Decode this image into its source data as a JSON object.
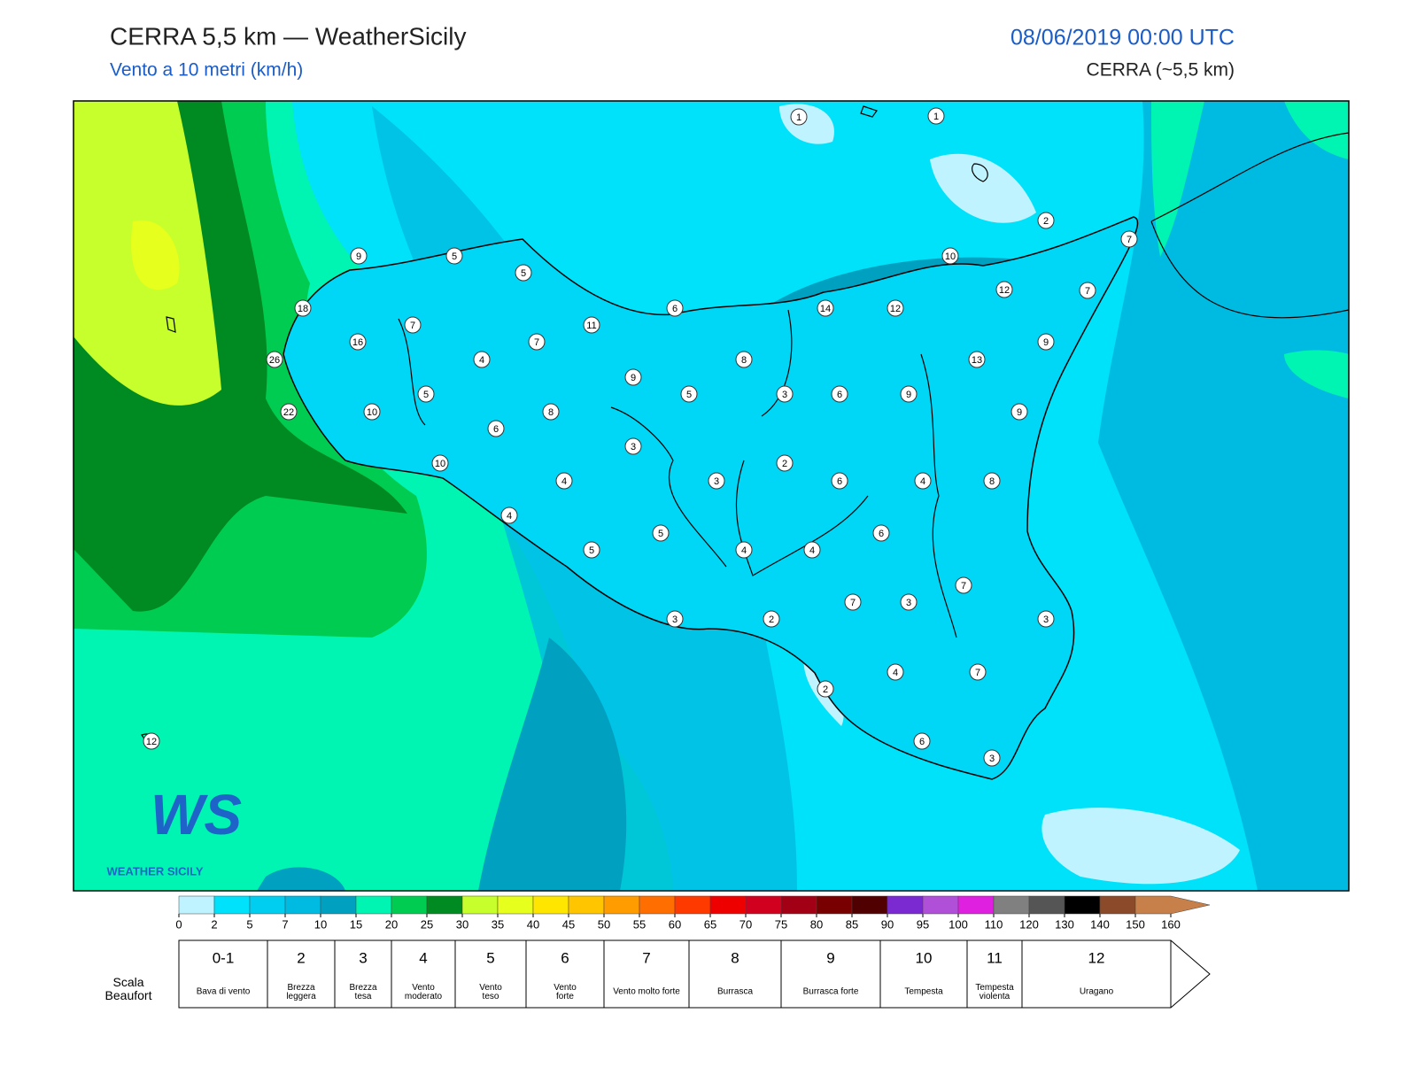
{
  "header": {
    "title": "CERRA 5,5 km — WeatherSicily",
    "subtitle": "Vento a 10 metri (km/h)",
    "datetime": "08/06/2019 00:00 UTC",
    "model": "CERRA (~5,5 km)"
  },
  "map": {
    "stations": [
      1,
      1,
      2,
      7,
      9,
      5,
      5,
      10,
      12,
      7,
      18,
      6,
      14,
      12,
      7,
      11,
      16,
      7,
      9,
      26,
      4,
      8,
      13,
      9,
      5,
      5,
      3,
      6,
      9,
      22,
      10,
      8,
      9,
      6,
      3,
      10,
      2,
      4,
      3,
      6,
      4,
      8,
      4,
      6,
      5,
      5,
      4,
      4,
      7,
      7,
      3,
      3,
      2,
      3,
      4,
      7,
      2,
      12,
      6,
      3
    ],
    "logo": {
      "mark": "WS",
      "text": "WEATHER SICILY"
    }
  },
  "colorbar": {
    "ticks": [
      0,
      2,
      5,
      7,
      10,
      15,
      20,
      25,
      30,
      35,
      40,
      45,
      50,
      55,
      60,
      65,
      70,
      75,
      80,
      85,
      90,
      95,
      100,
      110,
      120,
      130,
      140,
      150,
      160
    ],
    "colors": [
      "#bff3ff",
      "#00e2fb",
      "#00cef1",
      "#00bbe1",
      "#00a0c0",
      "#00f5b2",
      "#00cc52",
      "#008a22",
      "#c6ff2c",
      "#e6ff1c",
      "#ffe600",
      "#ffc600",
      "#ff9c00",
      "#ff6e00",
      "#ff3a00",
      "#ef0000",
      "#d0001e",
      "#a20014",
      "#780000",
      "#500000",
      "#7a2ad0",
      "#b050d8",
      "#e020e0",
      "#808080",
      "#555555",
      "#000000",
      "#8b4a2a",
      "#c8804a"
    ]
  },
  "beaufort": {
    "label": "Scala Beaufort",
    "levels": [
      {
        "force": "0-1",
        "name": "Bava di vento"
      },
      {
        "force": "2",
        "name": "Brezza leggera"
      },
      {
        "force": "3",
        "name": "Brezza tesa"
      },
      {
        "force": "4",
        "name": "Vento moderato"
      },
      {
        "force": "5",
        "name": "Vento teso"
      },
      {
        "force": "6",
        "name": "Vento forte"
      },
      {
        "force": "7",
        "name": "Vento molto forte"
      },
      {
        "force": "8",
        "name": "Burrasca"
      },
      {
        "force": "9",
        "name": "Burrasca forte"
      },
      {
        "force": "10",
        "name": "Tempesta"
      },
      {
        "force": "11",
        "name": "Tempesta violenta"
      },
      {
        "force": "12",
        "name": "Uragano"
      }
    ]
  }
}
